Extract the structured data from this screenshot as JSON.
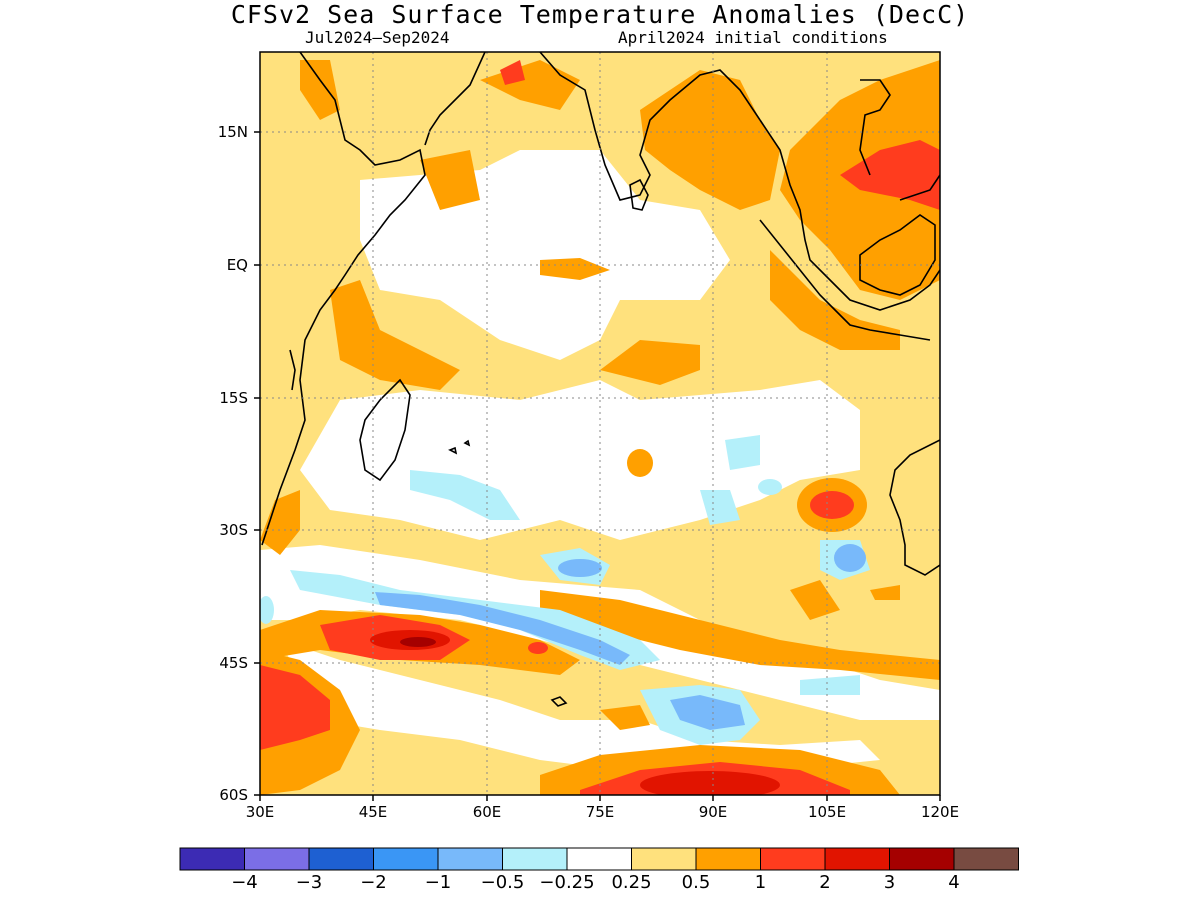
{
  "title": "CFSv2 Sea Surface Temperature Anomalies (DecC)",
  "period": "Jul2024—Sep2024",
  "initial_conditions": "April2024 initial conditions",
  "axes": {
    "lat_labels": [
      "15N",
      "EQ",
      "15S",
      "30S",
      "45S",
      "60S"
    ],
    "lon_labels": [
      "30E",
      "45E",
      "60E",
      "75E",
      "90E",
      "105E",
      "120E"
    ]
  },
  "colorbar": {
    "colors": [
      "#3c2bb4",
      "#7b6ee6",
      "#1e60d2",
      "#3a96f5",
      "#78b9fa",
      "#b4f0fa",
      "#ffffff",
      "#ffe17d",
      "#ffa000",
      "#ff3c1e",
      "#e11400",
      "#a50000",
      "#784b41"
    ],
    "labels": [
      "−4",
      "−3",
      "−2",
      "−1",
      "−0.5",
      "−0.25",
      "0.25",
      "0.5",
      "1",
      "2",
      "3",
      "4"
    ]
  },
  "colors": {
    "weak_warm": "#ffe17d",
    "warm": "#ffa000",
    "strong_warm": "#ff3c1e",
    "very_warm": "#e11400",
    "extreme_warm": "#a50000",
    "weak_cool": "#b4f0fa",
    "cool": "#78b9fa",
    "coastline": "#000000"
  }
}
